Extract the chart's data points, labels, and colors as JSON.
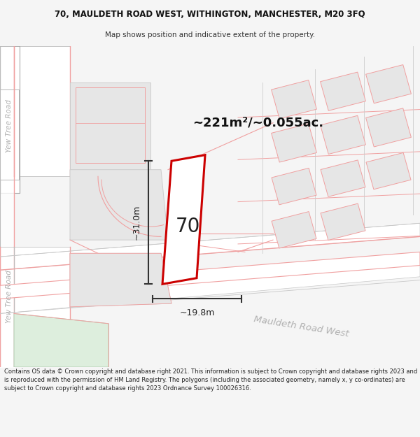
{
  "title_line1": "70, MAULDETH ROAD WEST, WITHINGTON, MANCHESTER, M20 3FQ",
  "title_line2": "Map shows position and indicative extent of the property.",
  "area_text": "~221m²/~0.055ac.",
  "property_number": "70",
  "dim_width": "~19.8m",
  "dim_height": "~31.0m",
  "road_label": "Mauldeth Road West",
  "road_label2_top": "Yew Tree Road",
  "road_label2_bottom": "Yew Tree Road",
  "footer_text": "Contains OS data © Crown copyright and database right 2021. This information is subject to Crown copyright and database rights 2023 and is reproduced with the permission of HM Land Registry. The polygons (including the associated geometry, namely x, y co-ordinates) are subject to Crown copyright and database rights 2023 Ordnance Survey 100026316.",
  "bg_color": "#f5f5f5",
  "map_bg": "#f7f7f7",
  "building_fill": "#e6e6e6",
  "building_stroke": "#cccccc",
  "road_line_color": "#f0a0a0",
  "road_fill": "#ffffff",
  "green_area": "#ddeedd"
}
